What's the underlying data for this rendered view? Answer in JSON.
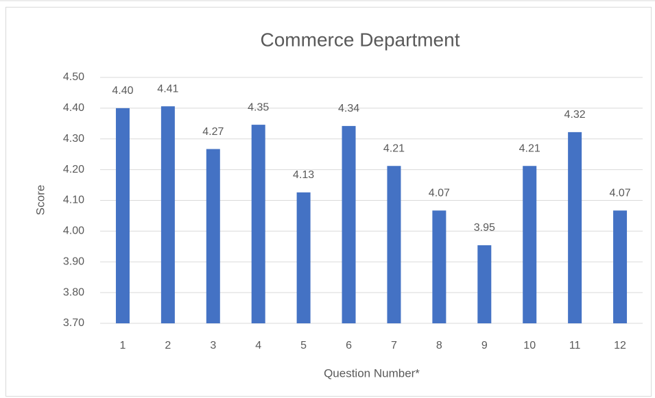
{
  "chart_data": {
    "type": "bar",
    "title": "Commerce Department",
    "x_label": "Question Number*",
    "y_label": "Score",
    "categories": [
      "1",
      "2",
      "3",
      "4",
      "5",
      "6",
      "7",
      "8",
      "9",
      "10",
      "11",
      "12"
    ],
    "values": [
      4.4,
      4.406,
      4.267,
      4.346,
      4.126,
      4.342,
      4.212,
      4.067,
      3.954,
      4.212,
      4.322,
      4.067
    ],
    "value_labels": [
      "4.40",
      "4.41",
      "4.27",
      "4.35",
      "4.13",
      "4.34",
      "4.21",
      "4.07",
      "3.95",
      "4.21",
      "4.32",
      "4.07"
    ],
    "color": "#4472c4",
    "ylim": [
      3.7,
      4.5
    ],
    "yticks": [
      {
        "value": 3.7,
        "label": "3.70"
      },
      {
        "value": 3.8,
        "label": "3.80"
      },
      {
        "value": 3.9,
        "label": "3.90"
      },
      {
        "value": 4.0,
        "label": "4.00"
      },
      {
        "value": 4.1,
        "label": "4.10"
      },
      {
        "value": 4.2,
        "label": "4.20"
      },
      {
        "value": 4.3,
        "label": "4.30"
      },
      {
        "value": 4.4,
        "label": "4.40"
      },
      {
        "value": 4.5,
        "label": "4.50"
      }
    ],
    "grid": true
  }
}
